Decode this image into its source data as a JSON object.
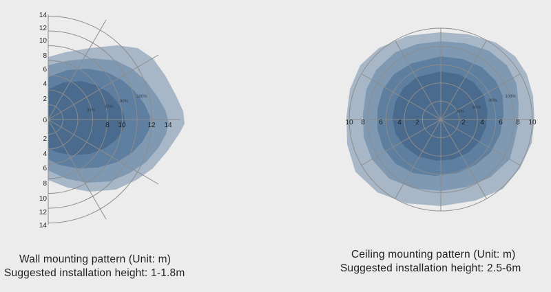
{
  "wall_diagram": {
    "caption_line1": "Wall mounting pattern (Unit: m)",
    "caption_line2": "Suggested installation height: 1-1.8m",
    "vertical_ticks_top": [
      "14",
      "12",
      "10",
      "8",
      "6",
      "4",
      "2"
    ],
    "center_tick": "0",
    "vertical_ticks_bottom": [
      "2",
      "4",
      "6",
      "8",
      "10",
      "12",
      "14"
    ],
    "horizontal_ticks": [
      "8",
      "10",
      "12",
      "14"
    ],
    "percent_labels": [
      "100%",
      "90%",
      "60%",
      "30%"
    ]
  },
  "ceiling_diagram": {
    "caption_line1": "Ceiling  mounting pattern (Unit: m)",
    "caption_line2": "Suggested installation height: 2.5-6m",
    "left_ticks": [
      "10",
      "8",
      "6",
      "4",
      "2"
    ],
    "right_ticks": [
      "2",
      "4",
      "6",
      "8",
      "10"
    ],
    "percent_labels": [
      "100%",
      "90%",
      "60%",
      "30%"
    ]
  },
  "colors": {
    "background": "#ececec",
    "zone_100": "#a7b7c7",
    "zone_90": "#7f99b3",
    "zone_60": "#5e7f9f",
    "zone_30": "#4a6b8d",
    "grid": "#8c8c8c",
    "text": "#1f1f1f"
  }
}
